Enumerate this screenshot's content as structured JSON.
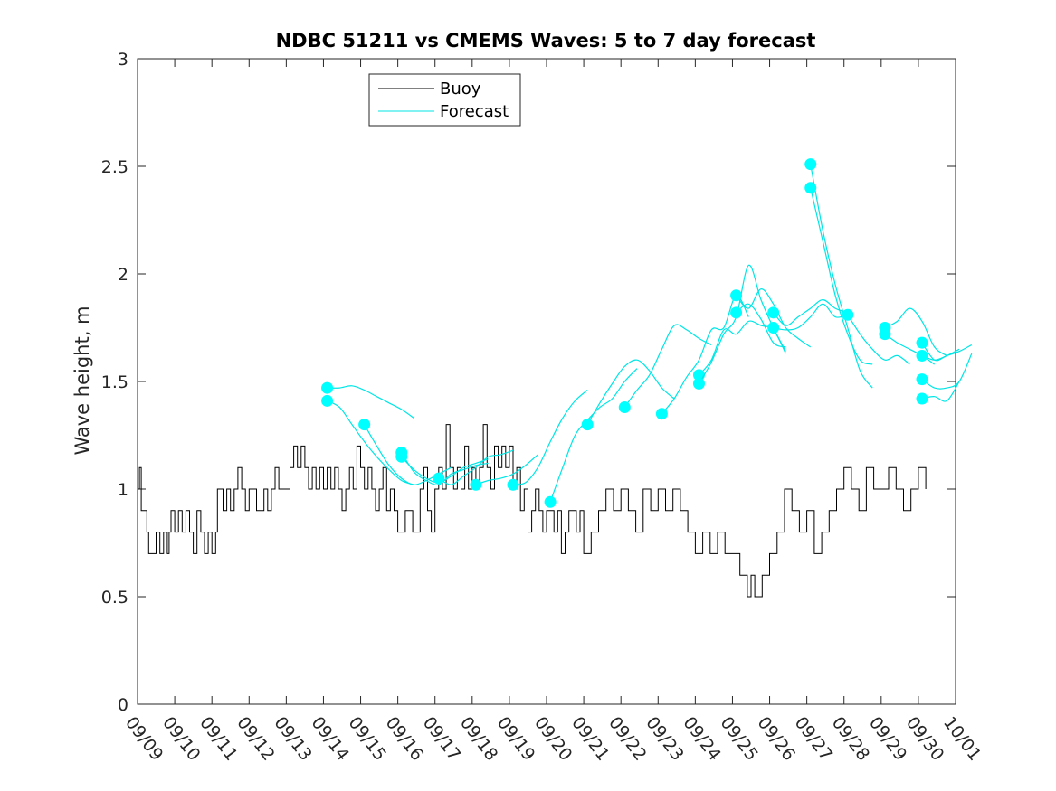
{
  "chart_data": {
    "type": "line",
    "title": "NDBC 51211 vs CMEMS Waves: 5 to 7 day forecast",
    "xlabel": "",
    "ylabel": "Wave height, m",
    "xlim": [
      0,
      22
    ],
    "ylim": [
      0,
      3
    ],
    "x_unit": "days since 09/09",
    "xticks": [
      0,
      1,
      2,
      3,
      4,
      5,
      6,
      7,
      8,
      9,
      10,
      11,
      12,
      13,
      14,
      15,
      16,
      17,
      18,
      19,
      20,
      21,
      22
    ],
    "xtick_labels": [
      "09/09",
      "09/10",
      "09/11",
      "09/12",
      "09/13",
      "09/14",
      "09/15",
      "09/16",
      "09/17",
      "09/18",
      "09/19",
      "09/20",
      "09/21",
      "09/22",
      "09/23",
      "09/24",
      "09/25",
      "09/26",
      "09/27",
      "09/28",
      "09/29",
      "09/30",
      "10/01"
    ],
    "yticks": [
      0,
      0.5,
      1,
      1.5,
      2,
      2.5,
      3
    ],
    "ytick_labels": [
      "0",
      "0.5",
      "1",
      "1.5",
      "2",
      "2.5",
      "3"
    ],
    "grid": false,
    "legend": {
      "placement": "top-left",
      "entries": [
        {
          "name": "Buoy",
          "color": "#000000"
        },
        {
          "name": "Forecast",
          "color": "#00e6e6"
        }
      ]
    },
    "colors": {
      "buoy": "#000000",
      "forecast": "#00e6e6",
      "marker": "#00ffff"
    },
    "series": [
      {
        "name": "Buoy",
        "kind": "step",
        "points": [
          [
            0,
            1.0
          ],
          [
            0.05,
            1.1
          ],
          [
            0.1,
            0.9
          ],
          [
            0.2,
            0.9
          ],
          [
            0.25,
            0.8
          ],
          [
            0.3,
            0.7
          ],
          [
            0.5,
            0.8
          ],
          [
            0.6,
            0.7
          ],
          [
            0.7,
            0.8
          ],
          [
            0.8,
            0.7
          ],
          [
            0.85,
            0.8
          ],
          [
            0.9,
            0.9
          ],
          [
            1.0,
            0.8
          ],
          [
            1.1,
            0.9
          ],
          [
            1.2,
            0.8
          ],
          [
            1.3,
            0.9
          ],
          [
            1.4,
            0.8
          ],
          [
            1.5,
            0.7
          ],
          [
            1.6,
            0.9
          ],
          [
            1.7,
            0.8
          ],
          [
            1.8,
            0.7
          ],
          [
            1.9,
            0.8
          ],
          [
            2.0,
            0.7
          ],
          [
            2.1,
            0.8
          ],
          [
            2.15,
            1.0
          ],
          [
            2.3,
            0.9
          ],
          [
            2.4,
            1.0
          ],
          [
            2.5,
            0.9
          ],
          [
            2.6,
            1.0
          ],
          [
            2.7,
            1.1
          ],
          [
            2.8,
            1.0
          ],
          [
            2.9,
            0.9
          ],
          [
            3.0,
            1.0
          ],
          [
            3.2,
            0.9
          ],
          [
            3.4,
            1.0
          ],
          [
            3.5,
            0.9
          ],
          [
            3.6,
            1.0
          ],
          [
            3.7,
            1.1
          ],
          [
            3.8,
            1.0
          ],
          [
            4.0,
            1.0
          ],
          [
            4.1,
            1.1
          ],
          [
            4.2,
            1.2
          ],
          [
            4.3,
            1.1
          ],
          [
            4.4,
            1.2
          ],
          [
            4.5,
            1.1
          ],
          [
            4.6,
            1.0
          ],
          [
            4.7,
            1.1
          ],
          [
            4.8,
            1.0
          ],
          [
            4.9,
            1.1
          ],
          [
            5.0,
            1.0
          ],
          [
            5.1,
            1.1
          ],
          [
            5.2,
            1.0
          ],
          [
            5.3,
            1.1
          ],
          [
            5.4,
            1.0
          ],
          [
            5.5,
            0.9
          ],
          [
            5.6,
            1.0
          ],
          [
            5.7,
            1.1
          ],
          [
            5.8,
            1.0
          ],
          [
            5.9,
            1.2
          ],
          [
            6.0,
            1.1
          ],
          [
            6.1,
            1.0
          ],
          [
            6.2,
            1.1
          ],
          [
            6.3,
            1.0
          ],
          [
            6.4,
            0.9
          ],
          [
            6.5,
            1.0
          ],
          [
            6.6,
            1.1
          ],
          [
            6.7,
            0.9
          ],
          [
            6.8,
            1.0
          ],
          [
            6.9,
            0.9
          ],
          [
            7.0,
            0.8
          ],
          [
            7.2,
            0.9
          ],
          [
            7.4,
            0.8
          ],
          [
            7.6,
            1.0
          ],
          [
            7.7,
            1.1
          ],
          [
            7.8,
            0.9
          ],
          [
            7.9,
            0.8
          ],
          [
            8.0,
            1.0
          ],
          [
            8.1,
            1.1
          ],
          [
            8.2,
            1.0
          ],
          [
            8.3,
            1.3
          ],
          [
            8.4,
            1.1
          ],
          [
            8.5,
            1.0
          ],
          [
            8.6,
            1.1
          ],
          [
            8.7,
            1.0
          ],
          [
            8.8,
            1.2
          ],
          [
            8.9,
            1.0
          ],
          [
            9.0,
            1.1
          ],
          [
            9.1,
            1.0
          ],
          [
            9.2,
            1.1
          ],
          [
            9.3,
            1.3
          ],
          [
            9.4,
            1.1
          ],
          [
            9.5,
            1.0
          ],
          [
            9.6,
            1.2
          ],
          [
            9.7,
            1.1
          ],
          [
            9.8,
            1.2
          ],
          [
            9.9,
            1.1
          ],
          [
            10.0,
            1.2
          ],
          [
            10.1,
            1.0
          ],
          [
            10.2,
            1.1
          ],
          [
            10.3,
            0.9
          ],
          [
            10.4,
            1.0
          ],
          [
            10.5,
            0.8
          ],
          [
            10.6,
            0.9
          ],
          [
            10.7,
            1.0
          ],
          [
            10.8,
            0.9
          ],
          [
            10.9,
            0.8
          ],
          [
            11.0,
            0.9
          ],
          [
            11.2,
            0.8
          ],
          [
            11.3,
            0.9
          ],
          [
            11.4,
            0.7
          ],
          [
            11.5,
            0.8
          ],
          [
            11.6,
            0.9
          ],
          [
            11.8,
            0.8
          ],
          [
            11.9,
            0.9
          ],
          [
            12.0,
            0.7
          ],
          [
            12.2,
            0.8
          ],
          [
            12.4,
            0.9
          ],
          [
            12.6,
            1.0
          ],
          [
            12.8,
            0.9
          ],
          [
            13.0,
            1.0
          ],
          [
            13.2,
            0.9
          ],
          [
            13.4,
            0.8
          ],
          [
            13.6,
            1.0
          ],
          [
            13.8,
            0.9
          ],
          [
            14.0,
            1.0
          ],
          [
            14.2,
            0.9
          ],
          [
            14.4,
            1.0
          ],
          [
            14.6,
            0.9
          ],
          [
            14.8,
            0.8
          ],
          [
            15.0,
            0.7
          ],
          [
            15.2,
            0.8
          ],
          [
            15.4,
            0.7
          ],
          [
            15.6,
            0.8
          ],
          [
            15.8,
            0.7
          ],
          [
            16.0,
            0.7
          ],
          [
            16.2,
            0.6
          ],
          [
            16.4,
            0.5
          ],
          [
            16.5,
            0.6
          ],
          [
            16.6,
            0.5
          ],
          [
            16.8,
            0.6
          ],
          [
            17.0,
            0.7
          ],
          [
            17.2,
            0.8
          ],
          [
            17.4,
            1.0
          ],
          [
            17.6,
            0.9
          ],
          [
            17.8,
            0.8
          ],
          [
            18.0,
            0.9
          ],
          [
            18.2,
            0.7
          ],
          [
            18.4,
            0.8
          ],
          [
            18.6,
            0.9
          ],
          [
            18.8,
            1.0
          ],
          [
            19.0,
            1.1
          ],
          [
            19.2,
            1.0
          ],
          [
            19.4,
            0.9
          ],
          [
            19.6,
            1.1
          ],
          [
            19.8,
            1.0
          ],
          [
            20.0,
            1.0
          ],
          [
            20.2,
            1.1
          ],
          [
            20.4,
            1.0
          ],
          [
            20.6,
            0.9
          ],
          [
            20.8,
            1.0
          ],
          [
            21.0,
            1.1
          ],
          [
            21.2,
            1.0
          ]
        ]
      },
      {
        "name": "Forecast",
        "kind": "runs",
        "runs": [
          {
            "start": 5.1,
            "values": [
              1.47,
              1.47,
              1.48,
              1.46,
              1.43,
              1.4,
              1.37,
              1.33
            ]
          },
          {
            "start": 5.1,
            "values": [
              1.41,
              1.38,
              1.3,
              1.22,
              1.15,
              1.09,
              1.04,
              1.02
            ]
          },
          {
            "start": 6.1,
            "values": [
              1.3,
              1.2,
              1.11,
              1.05,
              1.02,
              1.04,
              1.07,
              1.1
            ]
          },
          {
            "start": 7.1,
            "values": [
              1.17,
              1.08,
              1.04,
              1.02,
              1.07,
              1.09,
              1.11,
              1.12
            ]
          },
          {
            "start": 7.1,
            "values": [
              1.15,
              1.09,
              1.05,
              1.03,
              1.06,
              1.1,
              1.12,
              1.14
            ]
          },
          {
            "start": 8.1,
            "values": [
              1.05,
              1.02,
              1.06,
              1.1,
              1.15,
              1.16,
              1.18
            ]
          },
          {
            "start": 9.1,
            "values": [
              1.02,
              1.04,
              1.05,
              1.07,
              1.11,
              1.16
            ]
          },
          {
            "start": 10.1,
            "values": [
              1.02,
              1.03,
              1.1,
              1.22,
              1.33,
              1.41,
              1.46
            ]
          },
          {
            "start": 11.1,
            "values": [
              0.94,
              1.1,
              1.25,
              1.32,
              1.38,
              1.42,
              1.5,
              1.56
            ]
          },
          {
            "start": 12.1,
            "values": [
              1.3,
              1.4,
              1.49,
              1.57,
              1.6,
              1.55,
              1.47,
              1.42
            ]
          },
          {
            "start": 13.1,
            "values": [
              1.38,
              1.46,
              1.53,
              1.65,
              1.76,
              1.74,
              1.7,
              1.67
            ]
          },
          {
            "start": 14.1,
            "values": [
              1.35,
              1.42,
              1.52,
              1.6,
              1.74,
              1.75,
              1.9,
              1.8
            ]
          },
          {
            "start": 15.1,
            "values": [
              1.53,
              1.6,
              1.74,
              1.72,
              1.78,
              1.76,
              1.74,
              1.63
            ]
          },
          {
            "start": 15.1,
            "values": [
              1.49,
              1.59,
              1.72,
              1.8,
              2.04,
              1.88,
              1.75,
              1.64
            ]
          },
          {
            "start": 16.1,
            "values": [
              1.9,
              1.84,
              1.93,
              1.86,
              1.75,
              1.7,
              1.66
            ]
          },
          {
            "start": 16.1,
            "values": [
              1.82,
              1.86,
              1.79,
              1.68,
              1.66
            ]
          },
          {
            "start": 17.1,
            "values": [
              1.82,
              1.76,
              1.8,
              1.84,
              1.88,
              1.84,
              1.82
            ]
          },
          {
            "start": 17.1,
            "values": [
              1.75,
              1.74,
              1.75,
              1.8,
              1.86,
              1.8,
              1.81
            ]
          },
          {
            "start": 18.1,
            "values": [
              2.51,
              2.2,
              1.95,
              1.75,
              1.55,
              1.47
            ]
          },
          {
            "start": 18.1,
            "values": [
              2.4,
              2.15,
              1.9,
              1.72,
              1.6,
              1.58
            ]
          },
          {
            "start": 19.1,
            "values": [
              1.81,
              1.72,
              1.65,
              1.6,
              1.62,
              1.58
            ]
          },
          {
            "start": 20.1,
            "values": [
              1.75,
              1.78,
              1.84,
              1.78,
              1.66,
              1.62
            ]
          },
          {
            "start": 20.1,
            "values": [
              1.72,
              1.68,
              1.65,
              1.62,
              1.58
            ]
          },
          {
            "start": 21.1,
            "values": [
              1.68,
              1.6,
              1.62,
              1.64,
              1.67
            ]
          },
          {
            "start": 21.1,
            "values": [
              1.51,
              1.47,
              1.47,
              1.5,
              1.63
            ]
          },
          {
            "start": 21.1,
            "values": [
              1.62,
              1.6,
              1.62,
              1.65
            ]
          },
          {
            "start": 21.1,
            "values": [
              1.42,
              1.43,
              1.41,
              1.5
            ]
          }
        ]
      }
    ]
  }
}
